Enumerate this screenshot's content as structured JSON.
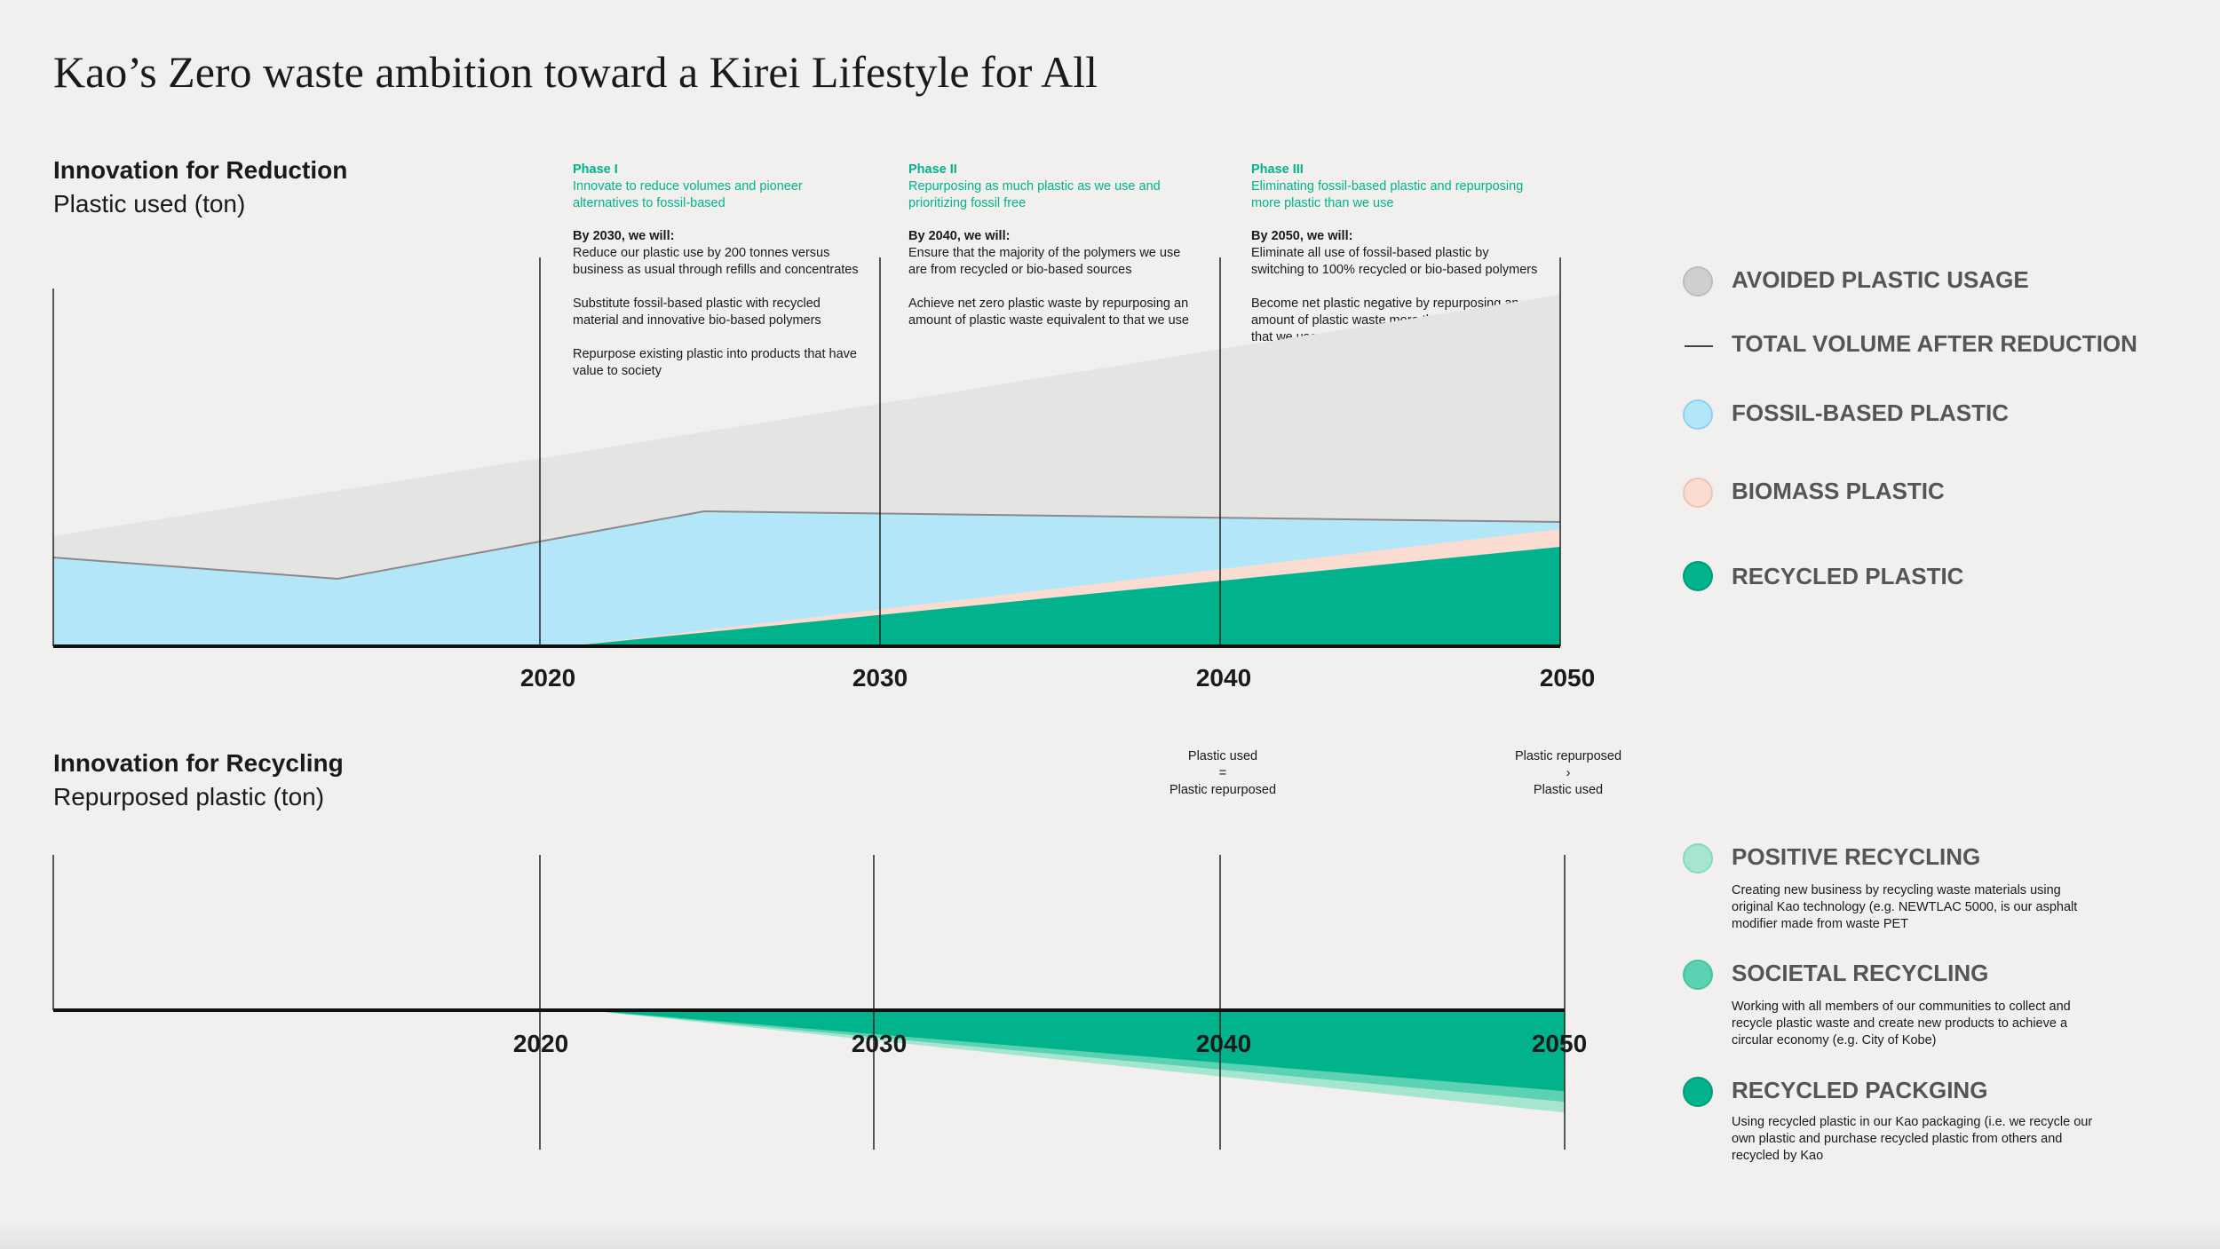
{
  "title": "Kao’s Zero waste ambition toward a Kirei Lifestyle for All",
  "reduction": {
    "heading": "Innovation for Reduction",
    "subheading": "Plastic used (ton)",
    "phases": [
      {
        "label": "Phase I",
        "desc": "Innovate to reduce volumes and pioneer alternatives to fossil-based",
        "by": "By 2030, we will:",
        "items": [
          "Reduce our plastic use by 200 tonnes versus business as usual through refills and concentrates",
          "Substitute fossil-based plastic with recycled material and innovative bio-based polymers",
          "Repurpose existing plastic into products that have value to society"
        ]
      },
      {
        "label": "Phase II",
        "desc": "Repurposing as much plastic as we use and prioritizing fossil free",
        "by": "By 2040, we will:",
        "items": [
          "Ensure that the majority of the polymers we use are from recycled or bio-based sources",
          "Achieve net zero plastic waste by repurposing an amount of plastic waste equivalent to that we use"
        ]
      },
      {
        "label": "Phase III",
        "desc": "Eliminating fossil-based plastic and repurposing more plastic than we use",
        "by": "By 2050, we will:",
        "items": [
          "Eliminate all use of fossil-based plastic by switching to 100% recycled or bio-based polymers",
          "Become net plastic negative by repurposing an amount of plastic waste more than equivalent to that we use"
        ]
      }
    ],
    "ticks": [
      "2020",
      "2030",
      "2040",
      "2050"
    ],
    "legend": [
      {
        "label": "AVOIDED PLASTIC USAGE",
        "color": "#cfcfcf",
        "kind": "dot"
      },
      {
        "label": "TOTAL VOLUME AFTER REDUCTION",
        "color": "#444444",
        "kind": "line"
      },
      {
        "label": "FOSSIL-BASED PLASTIC",
        "color": "#b3e6f9",
        "kind": "dot"
      },
      {
        "label": "BIOMASS PLASTIC",
        "color": "#fbdcd1",
        "kind": "dot"
      },
      {
        "label": "RECYCLED PLASTIC",
        "color": "#00b38c",
        "kind": "dot"
      }
    ]
  },
  "recycling": {
    "heading": "Innovation for Recycling",
    "subheading": "Repurposed plastic (ton)",
    "ticks": [
      "2020",
      "2030",
      "2040",
      "2050"
    ],
    "notes": [
      {
        "top": "Plastic used",
        "mid": "=",
        "bottom": "Plastic repurposed"
      },
      {
        "top": "Plastic repurposed",
        "mid": "›",
        "bottom": "Plastic used"
      }
    ],
    "legend": [
      {
        "label": "POSITIVE RECYCLING",
        "color": "#a6e6d1",
        "desc": "Creating new business by recycling waste materials using original Kao technology (e.g. NEWTLAC 5000, is our asphalt modifier made from waste PET"
      },
      {
        "label": "SOCIETAL RECYCLING",
        "color": "#5cd2b2",
        "desc": "Working with all members of our communities to collect and recycle plastic waste and create new products to achieve a circular economy (e.g. City of Kobe)"
      },
      {
        "label": "RECYCLED PACKGING",
        "color": "#00b38c",
        "desc": "Using recycled plastic in our Kao packaging (i.e. we recycle our own plastic and purchase recycled plastic from others and recycled by Kao"
      }
    ]
  },
  "chart_data": [
    {
      "type": "area",
      "title": "Innovation for Reduction",
      "ylabel": "Plastic used (ton)",
      "x_ticks": [
        2020,
        2030,
        2040,
        2050
      ],
      "xlim": [
        2006,
        2050
      ],
      "ylim": [
        0,
        100
      ],
      "colors": {
        "avoided": "#e4e4e3",
        "fossil": "#b3e6f9",
        "biomass": "#fbdcd1",
        "recycled": "#00b38c",
        "total_line": "#8a8a8a"
      },
      "series": [
        {
          "name": "AVOIDED PLASTIC USAGE",
          "x": [
            2006,
            2050
          ],
          "values": [
            31,
            99
          ]
        },
        {
          "name": "TOTAL VOLUME AFTER REDUCTION",
          "x": [
            2006,
            2014.3,
            2025,
            2050
          ],
          "values": [
            25,
            19,
            38,
            35
          ]
        },
        {
          "name": "BIOMASS PLASTIC",
          "x": [
            2021,
            2050
          ],
          "values": [
            0,
            33
          ]
        },
        {
          "name": "RECYCLED PLASTIC",
          "x": [
            2021,
            2050
          ],
          "values": [
            0,
            28
          ]
        }
      ]
    },
    {
      "type": "area",
      "title": "Innovation for Recycling",
      "ylabel": "Repurposed plastic (ton)",
      "x_ticks": [
        2020,
        2030,
        2040,
        2050
      ],
      "xlim": [
        2006,
        2050
      ],
      "ylim": [
        -100,
        0
      ],
      "series": [
        {
          "name": "RECYCLED PACKGING",
          "x": [
            2021.5,
            2050
          ],
          "values": [
            0,
            -76
          ]
        },
        {
          "name": "SOCIETAL RECYCLING",
          "x": [
            2021.5,
            2050
          ],
          "values": [
            0,
            -86
          ]
        },
        {
          "name": "POSITIVE RECYCLING",
          "x": [
            2021.5,
            2050
          ],
          "values": [
            0,
            -96
          ]
        }
      ]
    }
  ]
}
